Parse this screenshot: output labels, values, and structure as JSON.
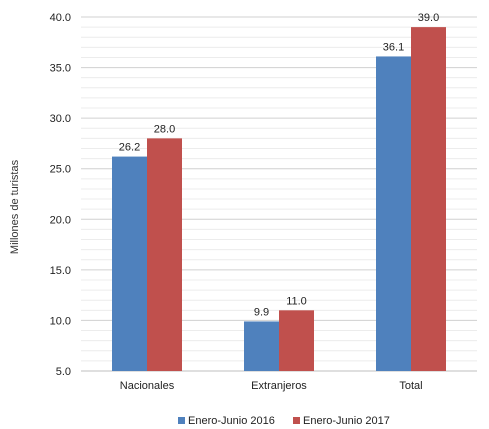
{
  "chart_data": {
    "type": "bar",
    "categories": [
      "Nacionales",
      "Extranjeros",
      "Total"
    ],
    "series": [
      {
        "name": "Enero-Junio 2016",
        "values": [
          26.2,
          9.9,
          36.1
        ],
        "labels": [
          "26.2",
          "9.9",
          "36.1"
        ],
        "color": "#4F81BD"
      },
      {
        "name": "Enero-Junio 2017",
        "values": [
          28.0,
          11.0,
          39.0
        ],
        "labels": [
          "28.0",
          "11.0",
          "39.0"
        ],
        "color": "#C0504D"
      }
    ],
    "ylabel": "Millones de turistas",
    "ylim": [
      5.0,
      40.0
    ],
    "yticks": [
      "5.0",
      "10.0",
      "15.0",
      "20.0",
      "25.0",
      "30.0",
      "35.0",
      "40.0"
    ],
    "grid": true,
    "legend": "bottom"
  }
}
